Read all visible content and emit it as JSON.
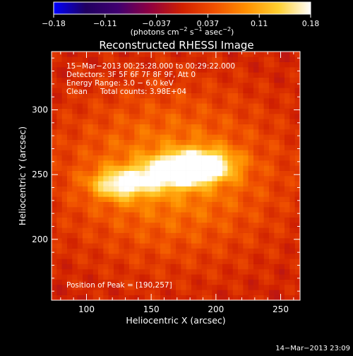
{
  "chart_data": {
    "type": "heatmap",
    "title": "Reconstructed RHESSI Image",
    "xlabel": "Heliocentric X (arcsec)",
    "ylabel": "Heliocentric Y (arcsec)",
    "xlim": [
      73,
      265
    ],
    "ylim": [
      153,
      345
    ],
    "x_ticks": [
      "100",
      "150",
      "200",
      "250"
    ],
    "y_ticks": [
      "200",
      "250",
      "300"
    ],
    "grid": false,
    "colorbar": {
      "min": -0.18,
      "max": 0.18,
      "ticks": [
        "−0.18",
        "−0.11",
        "−0.037",
        "0.037",
        "0.11",
        "0.18"
      ],
      "stops": [
        "#0000ff",
        "#200060",
        "#400070",
        "#900040",
        "#d02000",
        "#f05000",
        "#ff9000",
        "#ffd030",
        "#ffffff"
      ]
    },
    "sources": [
      {
        "x": 190,
        "y": 257,
        "peak": 0.18
      },
      {
        "x": 166,
        "y": 252,
        "peak": 0.15
      },
      {
        "x": 127,
        "y": 243,
        "peak": 0.13
      }
    ]
  },
  "colorbar_unit_main": "(photons cm",
  "colorbar_unit_exp1": "−2",
  "colorbar_unit_mid": " s",
  "colorbar_unit_exp2": "−1",
  "colorbar_unit_mid2": " asec",
  "colorbar_unit_exp3": "−2",
  "colorbar_unit_end": ")",
  "info": {
    "time_range": "15−Mar−2013 00:25:28.000 to 00:29:22.000",
    "detectors": "Detectors: 3F 5F 6F 7F 8F 9F, Att 0",
    "energy": "Energy Range: 3.0 − 6.0 keV",
    "clean_label": "Clean",
    "counts": "Total counts: 3.98E+04",
    "peak_position": "Position of Peak = [190,257]"
  },
  "timestamp": "14−Mar−2013 23:09"
}
